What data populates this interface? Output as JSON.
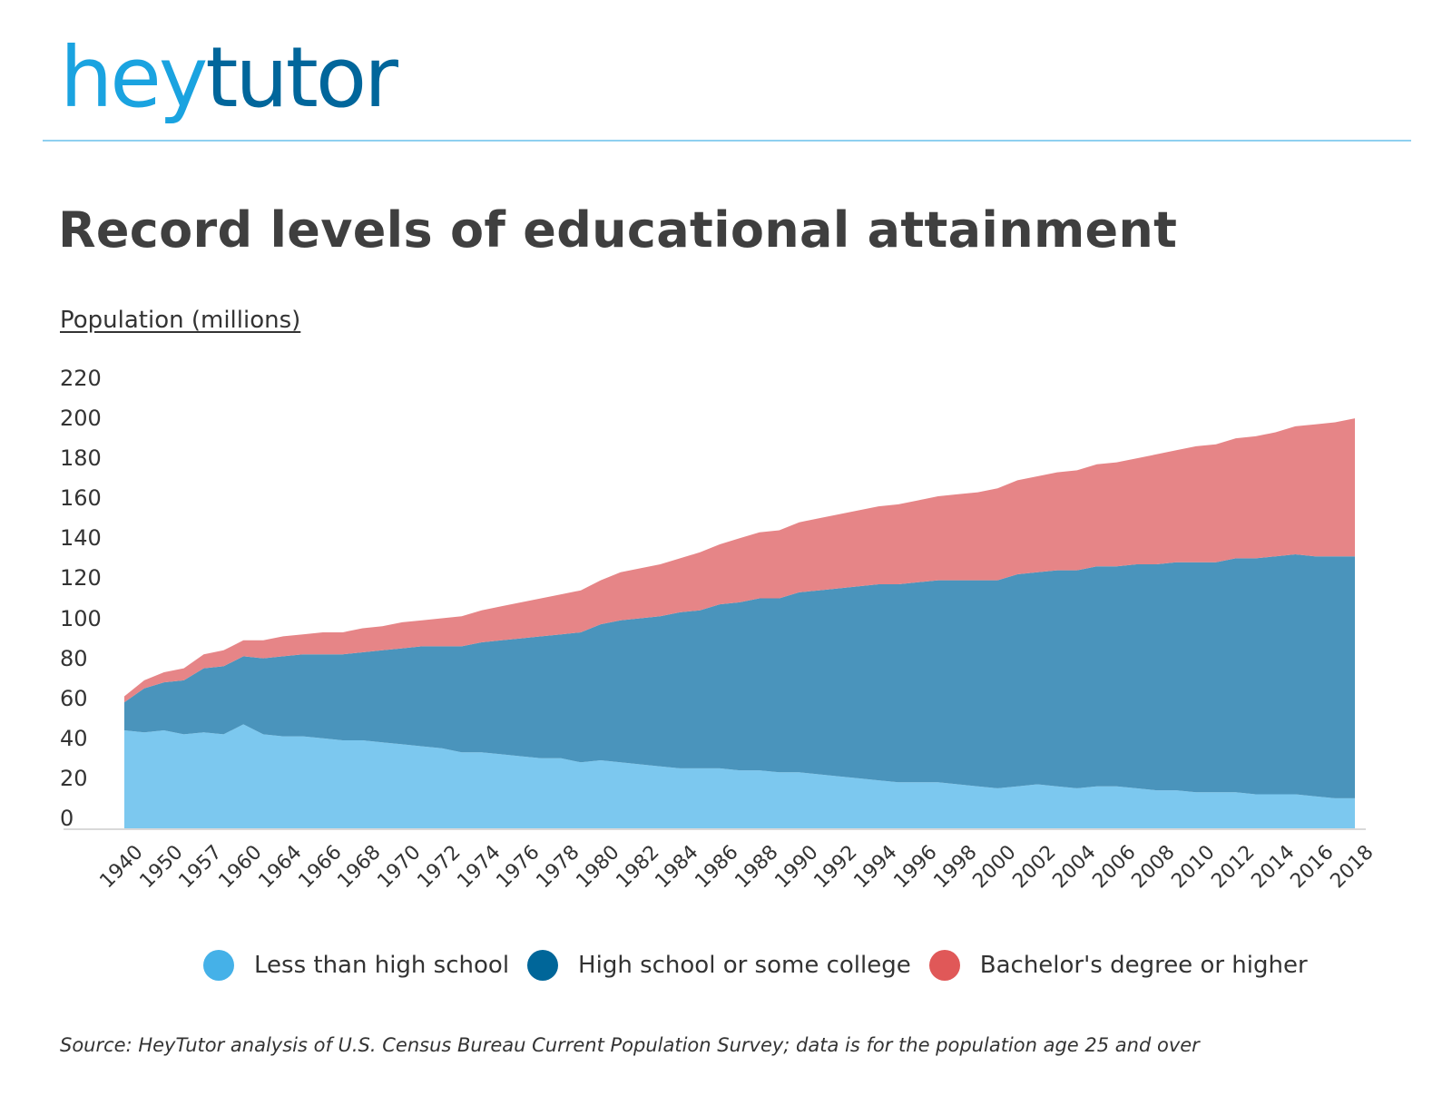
{
  "logo": {
    "part1": "hey",
    "part2": "tutor"
  },
  "title": "Record levels of educational attainment",
  "y_axis_label": "Population (millions)",
  "legend": [
    {
      "label": "Less than high school",
      "color": "#45b1e8"
    },
    {
      "label": "High school or some college",
      "color": "#006699"
    },
    {
      "label": "Bachelor's degree or higher",
      "color": "#e05858"
    }
  ],
  "source": "Source: HeyTutor analysis of U.S. Census Bureau Current Population Survey; data is for the population age 25 and over",
  "chart_data": {
    "type": "area",
    "stacked": true,
    "title": "Record levels of educational attainment",
    "xlabel": "",
    "ylabel": "Population (millions)",
    "ylim": [
      0,
      220
    ],
    "yticks": [
      0,
      20,
      40,
      60,
      80,
      100,
      120,
      140,
      160,
      180,
      200,
      220
    ],
    "grid": false,
    "legend_position": "bottom",
    "x_tick_labels": [
      "1940",
      "1950",
      "1957",
      "1960",
      "1964",
      "1966",
      "1968",
      "1970",
      "1972",
      "1974",
      "1976",
      "1978",
      "1980",
      "1982",
      "1984",
      "1986",
      "1988",
      "1990",
      "1992",
      "1994",
      "1996",
      "1998",
      "2000",
      "2002",
      "2004",
      "2006",
      "2008",
      "2010",
      "2012",
      "2014",
      "2016",
      "2018"
    ],
    "area_colors": {
      "less_than_hs": "#7cc8ef",
      "hs_or_some_college": "#4a94bc",
      "bachelors_or_higher": "#e68587"
    },
    "x": [
      "1940",
      "1947",
      "1950",
      "1952",
      "1957",
      "1959",
      "1960",
      "1962",
      "1964",
      "1965",
      "1966",
      "1967",
      "1968",
      "1969",
      "1970",
      "1971",
      "1972",
      "1973",
      "1974",
      "1975",
      "1976",
      "1977",
      "1978",
      "1979",
      "1980",
      "1981",
      "1982",
      "1983",
      "1984",
      "1985",
      "1986",
      "1987",
      "1988",
      "1989",
      "1990",
      "1991",
      "1992",
      "1993",
      "1994",
      "1995",
      "1996",
      "1997",
      "1998",
      "1999",
      "2000",
      "2001",
      "2002",
      "2003",
      "2004",
      "2005",
      "2006",
      "2007",
      "2008",
      "2009",
      "2010",
      "2011",
      "2012",
      "2013",
      "2014",
      "2015",
      "2016",
      "2017",
      "2018"
    ],
    "series": [
      {
        "name": "Less than high school",
        "values": [
          49,
          48,
          49,
          47,
          48,
          47,
          52,
          47,
          46,
          46,
          45,
          44,
          44,
          43,
          42,
          41,
          40,
          38,
          38,
          37,
          36,
          35,
          35,
          33,
          34,
          33,
          32,
          31,
          30,
          30,
          30,
          29,
          29,
          28,
          28,
          27,
          26,
          25,
          24,
          23,
          23,
          23,
          22,
          21,
          20,
          21,
          22,
          21,
          20,
          21,
          21,
          20,
          19,
          19,
          18,
          18,
          18,
          17,
          17,
          17,
          16,
          15,
          15
        ]
      },
      {
        "name": "High school or some college",
        "values": [
          14,
          22,
          24,
          27,
          32,
          34,
          34,
          38,
          40,
          41,
          42,
          43,
          44,
          46,
          48,
          50,
          51,
          53,
          55,
          57,
          59,
          61,
          62,
          65,
          68,
          71,
          73,
          75,
          78,
          79,
          82,
          84,
          86,
          87,
          90,
          92,
          94,
          96,
          98,
          99,
          100,
          101,
          102,
          103,
          104,
          106,
          106,
          108,
          109,
          110,
          110,
          112,
          113,
          114,
          115,
          115,
          117,
          118,
          119,
          120,
          120,
          121,
          121
        ]
      },
      {
        "name": "Bachelor's degree or higher",
        "values": [
          3,
          4,
          5,
          6,
          7,
          8,
          8,
          9,
          10,
          10,
          11,
          11,
          12,
          12,
          13,
          13,
          14,
          15,
          16,
          17,
          18,
          19,
          20,
          21,
          22,
          24,
          25,
          26,
          27,
          29,
          30,
          32,
          33,
          34,
          35,
          36,
          37,
          38,
          39,
          40,
          41,
          42,
          43,
          44,
          46,
          47,
          48,
          49,
          50,
          51,
          52,
          53,
          55,
          56,
          58,
          59,
          60,
          61,
          62,
          64,
          66,
          67,
          69
        ]
      }
    ]
  }
}
